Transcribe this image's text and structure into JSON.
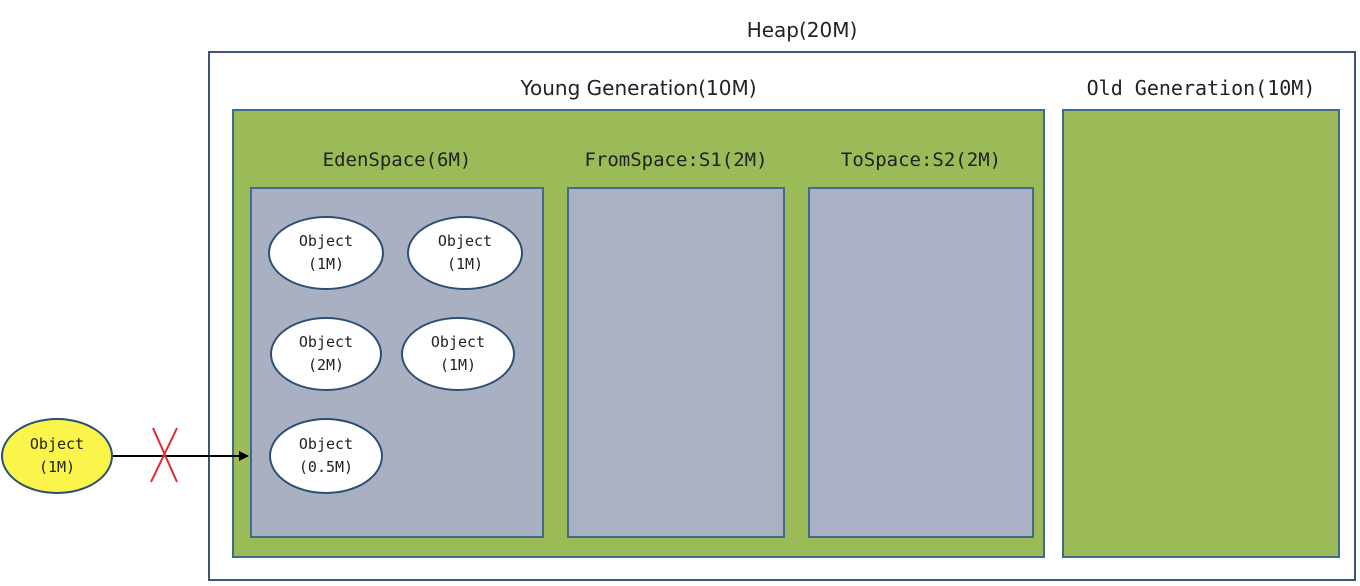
{
  "heap": {
    "title": "Heap(20M)"
  },
  "young_generation": {
    "title": "Young Generation(10M)"
  },
  "old_generation": {
    "title": "Old Generation(10M)"
  },
  "eden_space": {
    "title": "EdenSpace(6M)",
    "objects": [
      {
        "name": "Object",
        "size": "(1M)"
      },
      {
        "name": "Object",
        "size": "(1M)"
      },
      {
        "name": "Object",
        "size": "(2M)"
      },
      {
        "name": "Object",
        "size": "(1M)"
      },
      {
        "name": "Object",
        "size": "(0.5M)"
      }
    ]
  },
  "from_space": {
    "title": "FromSpace:S1(2M)"
  },
  "to_space": {
    "title": "ToSpace:S2(2M)"
  },
  "incoming_object": {
    "name": "Object",
    "size": "(1M)",
    "allocation_blocked": true
  },
  "colors": {
    "generation_fill": "#9bbb59",
    "space_fill": "#a8b0c2",
    "object_fill": "#ffffff",
    "incoming_object_fill": "#fbf44a",
    "border": "#3f6c8c",
    "blocked_mark": "#e0272b"
  }
}
